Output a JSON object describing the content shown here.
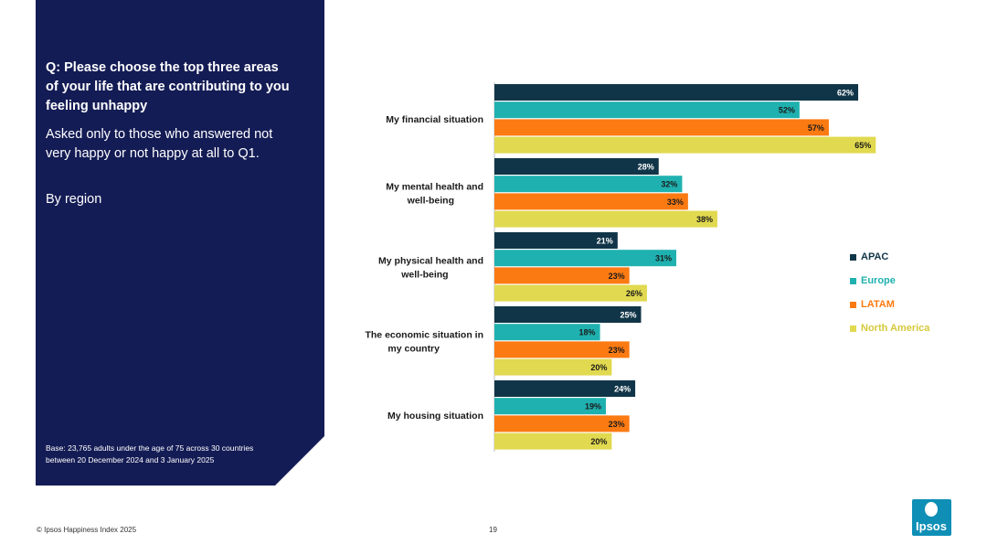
{
  "panel": {
    "question": "Q: Please choose the top three areas of your life that are contributing to you feeling unhappy",
    "subtext": "Asked only to those who answered not very happy or not happy at all to Q1.",
    "by_region": "By region",
    "base": "Base: 23,765 adults under the age of 75 across 30 countries between 20 December 2024 and 3 January 2025"
  },
  "footer": {
    "copyright": "© Ipsos Happiness Index 2025",
    "page_number": "19",
    "logo_text": "Ipsos"
  },
  "colors": {
    "panel_bg": "#141c55",
    "APAC": "#113548",
    "Europe": "#1fb1b0",
    "LATAM": "#fb7a12",
    "North America": "#e1d94f",
    "logo_bg": "#0f8fb6"
  },
  "chart_data": {
    "type": "bar",
    "orientation": "horizontal",
    "categories": [
      "My financial situation",
      "My mental health and well-being",
      "My physical health and well-being",
      "The economic situation in my country",
      "My housing situation"
    ],
    "series": [
      {
        "name": "APAC",
        "values": [
          62,
          28,
          21,
          25,
          24
        ]
      },
      {
        "name": "Europe",
        "values": [
          52,
          32,
          31,
          18,
          19
        ]
      },
      {
        "name": "LATAM",
        "values": [
          57,
          33,
          23,
          23,
          23
        ]
      },
      {
        "name": "North America",
        "values": [
          65,
          38,
          26,
          20,
          20
        ]
      }
    ],
    "value_suffix": "%",
    "legend_position": "right",
    "grid": false
  }
}
